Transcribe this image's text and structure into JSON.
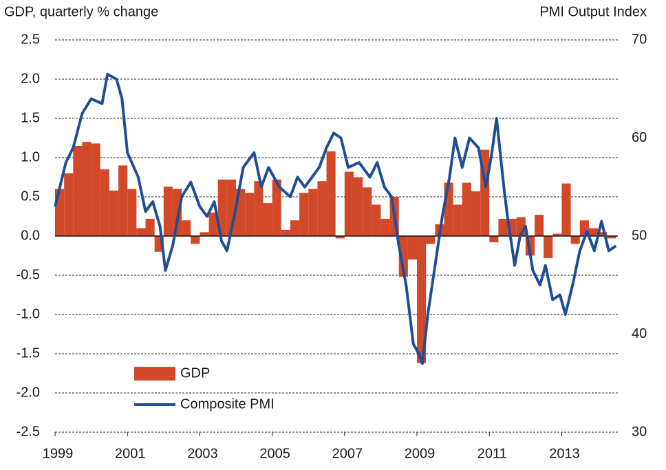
{
  "chart_data": {
    "type": "combo",
    "y_label": "GDP, quarterly % change",
    "y2_label": "PMI Output  Index",
    "xlim": [
      1999,
      2014.55
    ],
    "xticks": [
      1999,
      2001,
      2003,
      2005,
      2007,
      2009,
      2011,
      2013
    ],
    "ylim": [
      -2.5,
      2.5
    ],
    "yticks": [
      {
        "value": -2.5,
        "label": "-2.5"
      },
      {
        "value": -2,
        "label": "-2.0"
      },
      {
        "value": -1.5,
        "label": "-1.5"
      },
      {
        "value": -1,
        "label": "-1.0"
      },
      -0.5,
      {
        "value": 0,
        "label": "0.0"
      },
      0.5,
      {
        "value": 1,
        "label": "1.0"
      },
      1.5,
      {
        "value": 2,
        "label": "2.0"
      },
      2.5
    ],
    "y2lim": [
      30,
      70
    ],
    "y2ticks": [
      30,
      40,
      50,
      60,
      70
    ],
    "grid": true,
    "series": [
      {
        "name": "GDP",
        "kind": "bar",
        "color": "#d2492a",
        "x": [
          1999,
          1999.25,
          1999.5,
          1999.75,
          2000,
          2000.25,
          2000.5,
          2000.75,
          2001,
          2001.25,
          2001.5,
          2001.75,
          2002,
          2002.25,
          2002.5,
          2002.75,
          2003,
          2003.25,
          2003.5,
          2003.75,
          2004,
          2004.25,
          2004.5,
          2004.75,
          2005,
          2005.25,
          2005.5,
          2005.75,
          2006,
          2006.25,
          2006.5,
          2006.75,
          2007,
          2007.25,
          2007.5,
          2007.75,
          2008,
          2008.25,
          2008.5,
          2008.75,
          2009,
          2009.25,
          2009.5,
          2009.75,
          2010,
          2010.25,
          2010.5,
          2010.75,
          2011,
          2011.25,
          2011.5,
          2011.75,
          2012,
          2012.25,
          2012.5,
          2012.75,
          2013,
          2013.25,
          2013.5,
          2013.75,
          2014,
          2014.25
        ],
        "values": [
          0.6,
          0.8,
          1.15,
          1.2,
          1.18,
          0.85,
          0.58,
          0.9,
          0.6,
          0.1,
          0.22,
          -0.2,
          0.63,
          0.6,
          0.2,
          -0.1,
          0.05,
          0.3,
          0.72,
          0.72,
          0.6,
          0.55,
          0.7,
          0.42,
          0.72,
          0.08,
          0.2,
          0.55,
          0.6,
          0.7,
          1.08,
          -0.03,
          0.82,
          0.75,
          0.62,
          0.4,
          0.22,
          0.5,
          -0.52,
          -0.3,
          -1.62,
          -0.1,
          0.15,
          0.68,
          0.4,
          0.68,
          0.57,
          1.1,
          -0.08,
          0.22,
          0.22,
          0.24,
          -0.25,
          0.27,
          -0.28,
          0.03,
          0.67,
          -0.1,
          0.2,
          0.1,
          0.05,
          -0.03
        ]
      },
      {
        "name": "Composite PMI",
        "kind": "line",
        "axis": "y2",
        "color": "#1f4e96",
        "x": [
          1999,
          1999.3,
          1999.5,
          1999.75,
          2000,
          2000.3,
          2000.45,
          2000.7,
          2000.85,
          2001,
          2001.3,
          2001.5,
          2001.7,
          2001.9,
          2002.05,
          2002.25,
          2002.5,
          2002.75,
          2003,
          2003.2,
          2003.4,
          2003.6,
          2003.75,
          2003.95,
          2004.2,
          2004.5,
          2004.7,
          2004.9,
          2005.2,
          2005.5,
          2005.7,
          2005.9,
          2006.1,
          2006.3,
          2006.5,
          2006.7,
          2006.9,
          2007.1,
          2007.4,
          2007.7,
          2007.9,
          2008.1,
          2008.3,
          2008.5,
          2008.7,
          2008.9,
          2009.05,
          2009.15,
          2009.3,
          2009.5,
          2009.7,
          2009.9,
          2010.05,
          2010.25,
          2010.45,
          2010.7,
          2010.9,
          2011.05,
          2011.2,
          2011.4,
          2011.5,
          2011.7,
          2011.85,
          2012,
          2012.2,
          2012.4,
          2012.55,
          2012.75,
          2012.95,
          2013.1,
          2013.3,
          2013.5,
          2013.7,
          2013.9,
          2014.1,
          2014.3,
          2014.5
        ],
        "values": [
          53,
          57.5,
          59,
          62.5,
          64,
          63.5,
          66.5,
          66,
          64,
          58.5,
          56,
          52.5,
          53.5,
          51,
          46.5,
          49,
          54,
          55.5,
          53,
          52,
          53.5,
          49.5,
          48.5,
          52,
          57,
          58.5,
          55,
          57,
          55,
          54,
          56,
          55,
          56,
          57,
          59,
          60.5,
          60,
          57,
          57.5,
          56,
          57.5,
          55,
          54,
          49,
          45,
          39,
          38,
          37,
          42,
          47,
          52,
          56,
          60,
          57,
          60,
          59,
          55,
          58,
          62,
          55,
          52,
          47,
          50,
          51,
          46.5,
          45,
          47,
          43.5,
          44,
          42,
          45,
          48.5,
          50.5,
          48.5,
          51.5,
          48.5,
          49
        ]
      }
    ],
    "legend": "lower-left"
  }
}
